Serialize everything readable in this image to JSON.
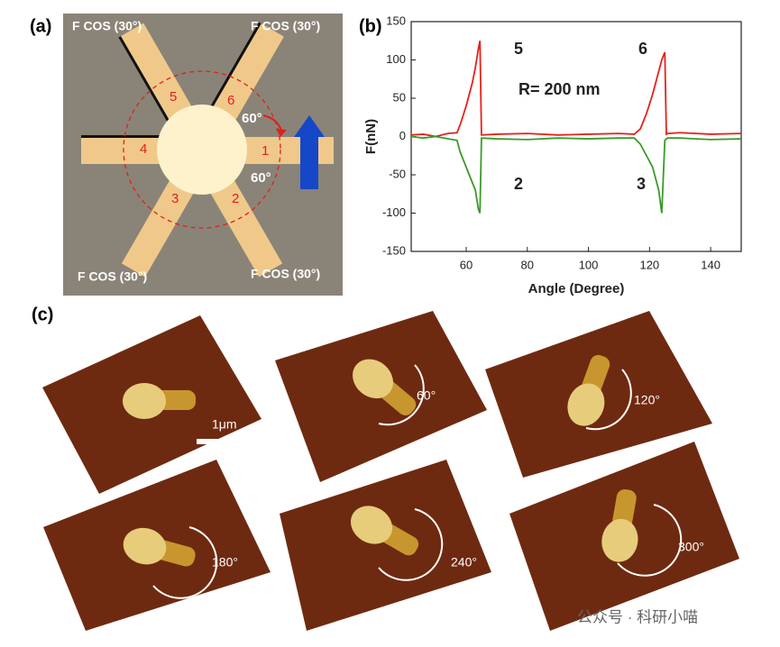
{
  "panel_a": {
    "label": "(a)",
    "force_labels": [
      "F COS (30°)",
      "F COS (30°)",
      "F COS (30°)",
      "F COS (30°)"
    ],
    "positions": [
      "1",
      "2",
      "3",
      "4",
      "5",
      "6"
    ],
    "angles": [
      "60°",
      "60°"
    ]
  },
  "chart_data": {
    "type": "line",
    "panel_label": "(b)",
    "x_label": "Angle (Degree)",
    "y_label": "F(nN)",
    "annotations": [
      "5",
      "6",
      "2",
      "3",
      "R= 200 nm"
    ],
    "x": [
      42,
      46,
      50,
      54,
      57,
      58,
      60,
      62,
      63,
      64,
      64.5,
      65,
      70,
      80,
      90,
      100,
      110,
      115,
      117,
      119,
      121,
      122,
      123,
      124,
      125,
      125.5,
      126,
      130,
      140,
      150
    ],
    "series": [
      {
        "name": "red",
        "color": "#e8201a",
        "values": [
          2,
          3,
          0,
          4,
          5,
          15,
          40,
          70,
          90,
          115,
          125,
          2,
          3,
          4,
          2,
          3,
          4,
          3,
          10,
          30,
          55,
          70,
          85,
          100,
          110,
          3,
          4,
          5,
          3,
          4
        ]
      },
      {
        "name": "green",
        "color": "#3a9a2a",
        "values": [
          0,
          -2,
          0,
          -3,
          -5,
          -20,
          -40,
          -60,
          -70,
          -95,
          -100,
          -2,
          -3,
          -4,
          -2,
          -3,
          -2,
          -2,
          -10,
          -25,
          -40,
          -55,
          -70,
          -100,
          -5,
          -3,
          -2,
          -2,
          -4,
          -3
        ]
      }
    ],
    "xlim": [
      42,
      150
    ],
    "xticks": [
      60,
      80,
      100,
      120,
      140
    ],
    "ylim": [
      -150,
      150
    ],
    "yticks": [
      -150,
      -100,
      -50,
      0,
      50,
      100,
      150
    ]
  },
  "panel_c": {
    "label": "(c)",
    "scale_bar": "1μm",
    "angles": [
      "60°",
      "120°",
      "180°",
      "240°",
      "300°"
    ]
  },
  "watermark": "公众号 · 科研小喵"
}
